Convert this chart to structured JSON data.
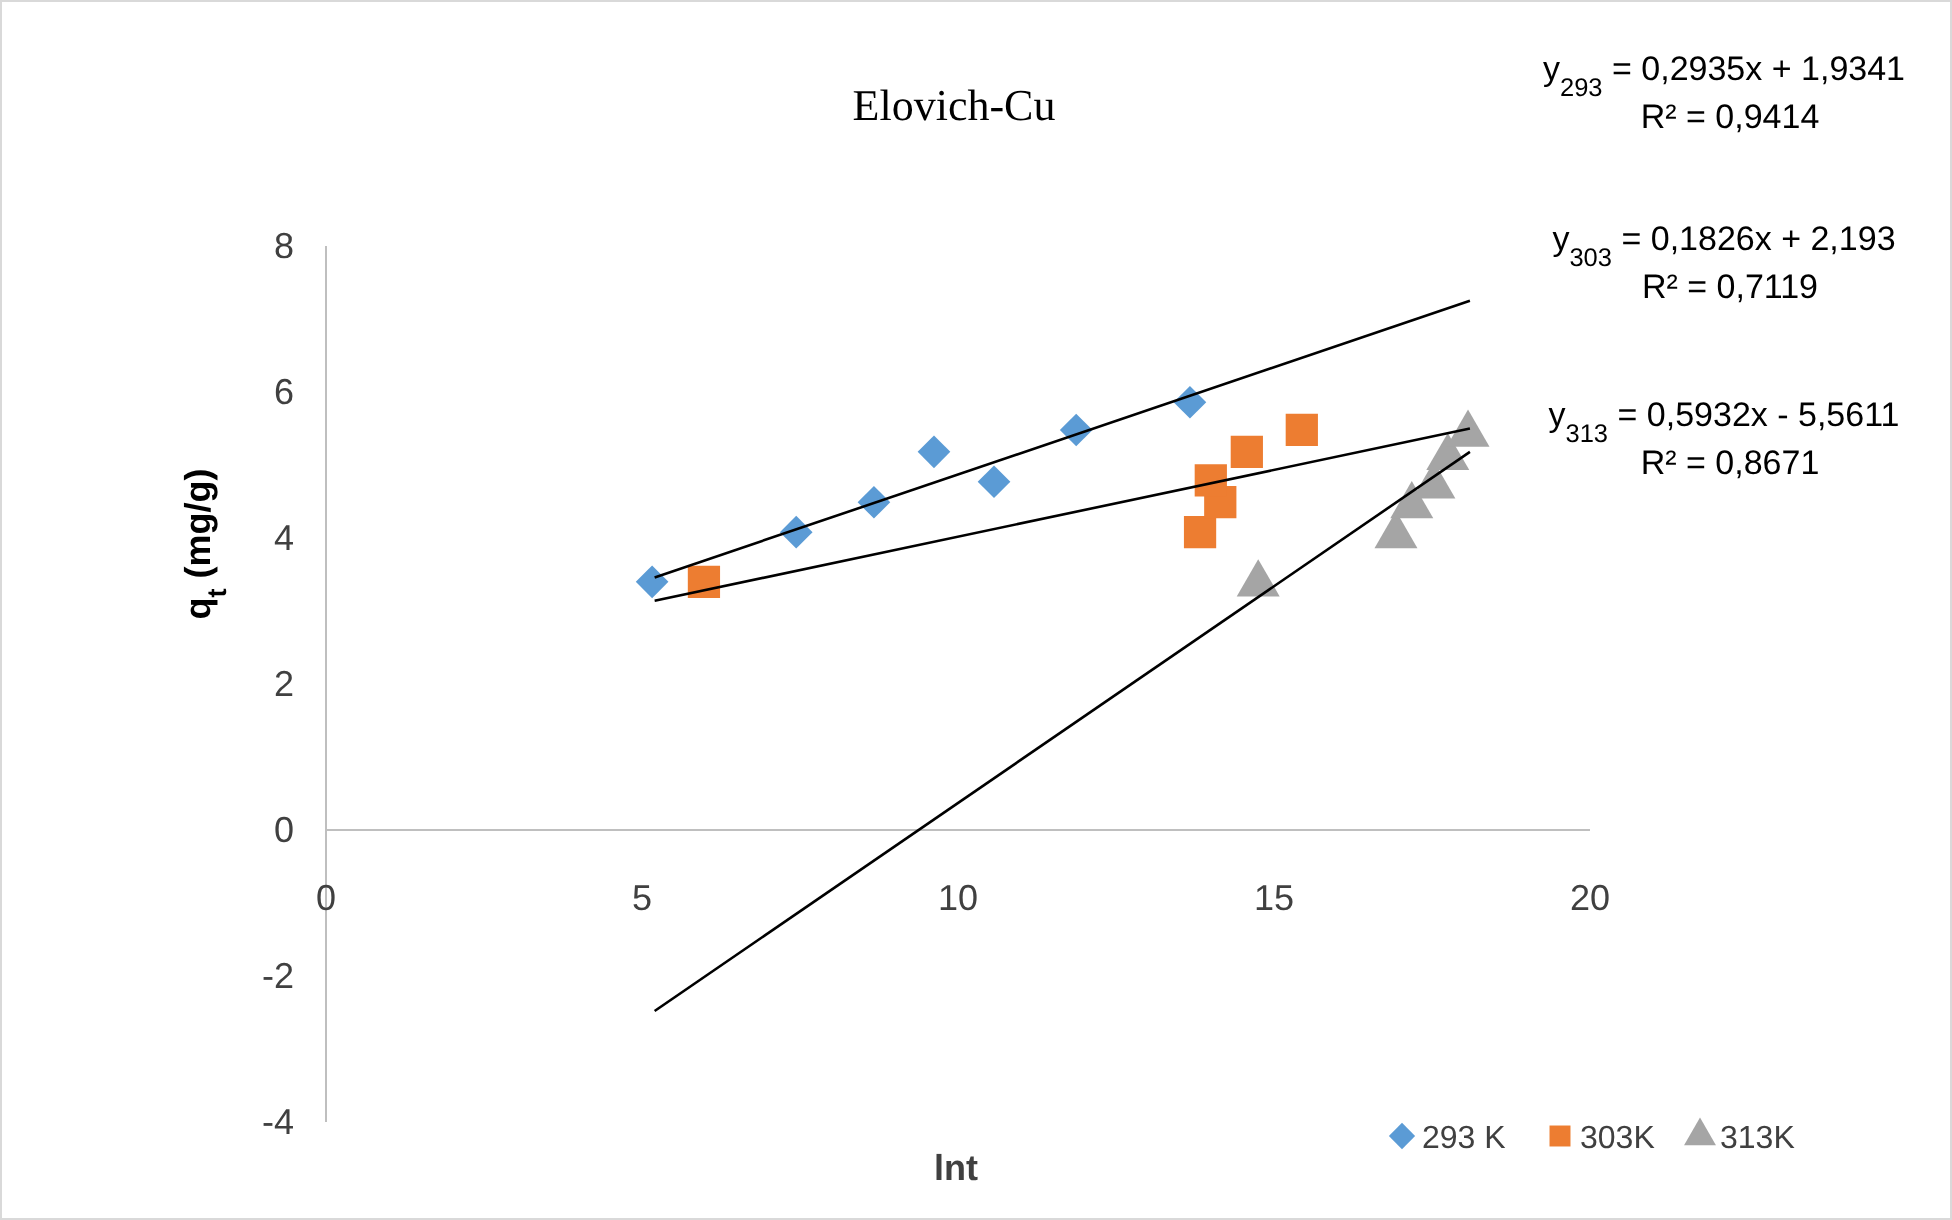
{
  "chart_data": {
    "type": "scatter",
    "title": "Elovich-Cu",
    "xlabel": "lnt",
    "ylabel": "q$_{t}$ (mg/g)",
    "xlim": [
      0,
      20
    ],
    "xticks": [
      0,
      5,
      10,
      15,
      20
    ],
    "ylim": [
      -4,
      8
    ],
    "yticks": [
      -4,
      -2,
      0,
      2,
      4,
      6,
      8
    ],
    "grid": false,
    "legend": "bottom right",
    "series": [
      {
        "name": "293 K",
        "color": "#5b9bd5",
        "marker": "diamond",
        "x": [
          5.16,
          7.44,
          8.67,
          9.62,
          10.57,
          11.87,
          13.67
        ],
        "values": [
          3.4,
          4.08,
          4.49,
          5.18,
          4.77,
          5.48,
          5.86
        ]
      },
      {
        "name": "303K",
        "color": "#ed7d31",
        "marker": "square",
        "x": [
          5.98,
          13.83,
          14.15,
          14.0,
          14.57,
          15.44
        ],
        "values": [
          3.4,
          4.08,
          4.49,
          4.79,
          5.18,
          5.48
        ]
      },
      {
        "name": "313K",
        "color": "#a5a5a5",
        "marker": "triangle",
        "x": [
          14.75,
          16.93,
          17.18,
          17.53,
          17.75,
          18.07
        ],
        "values": [
          3.37,
          4.03,
          4.44,
          4.71,
          5.1,
          5.42
        ]
      },
      {
        "type": "line",
        "color": "#000000",
        "marker": "none",
        "x": [
          5.2,
          18.1
        ],
        "values": [
          3.46,
          7.25
        ]
      },
      {
        "type": "line",
        "color": "#000000",
        "marker": "none",
        "x": [
          5.2,
          18.1
        ],
        "values": [
          3.14,
          5.5
        ]
      },
      {
        "type": "line",
        "color": "#000000",
        "marker": "none",
        "x": [
          5.2,
          18.1
        ],
        "values": [
          -2.48,
          5.18
        ]
      }
    ],
    "annotations": [
      "y$_{293}$ = 0,2935x + 1,9341\nR² = 0,9414",
      "y$_{303}$ = 0,1826x + 2,193\nR² = 0,7119",
      "y$_{313}$ = 0,5932x - 5,5611\nR² = 0,8671"
    ]
  }
}
